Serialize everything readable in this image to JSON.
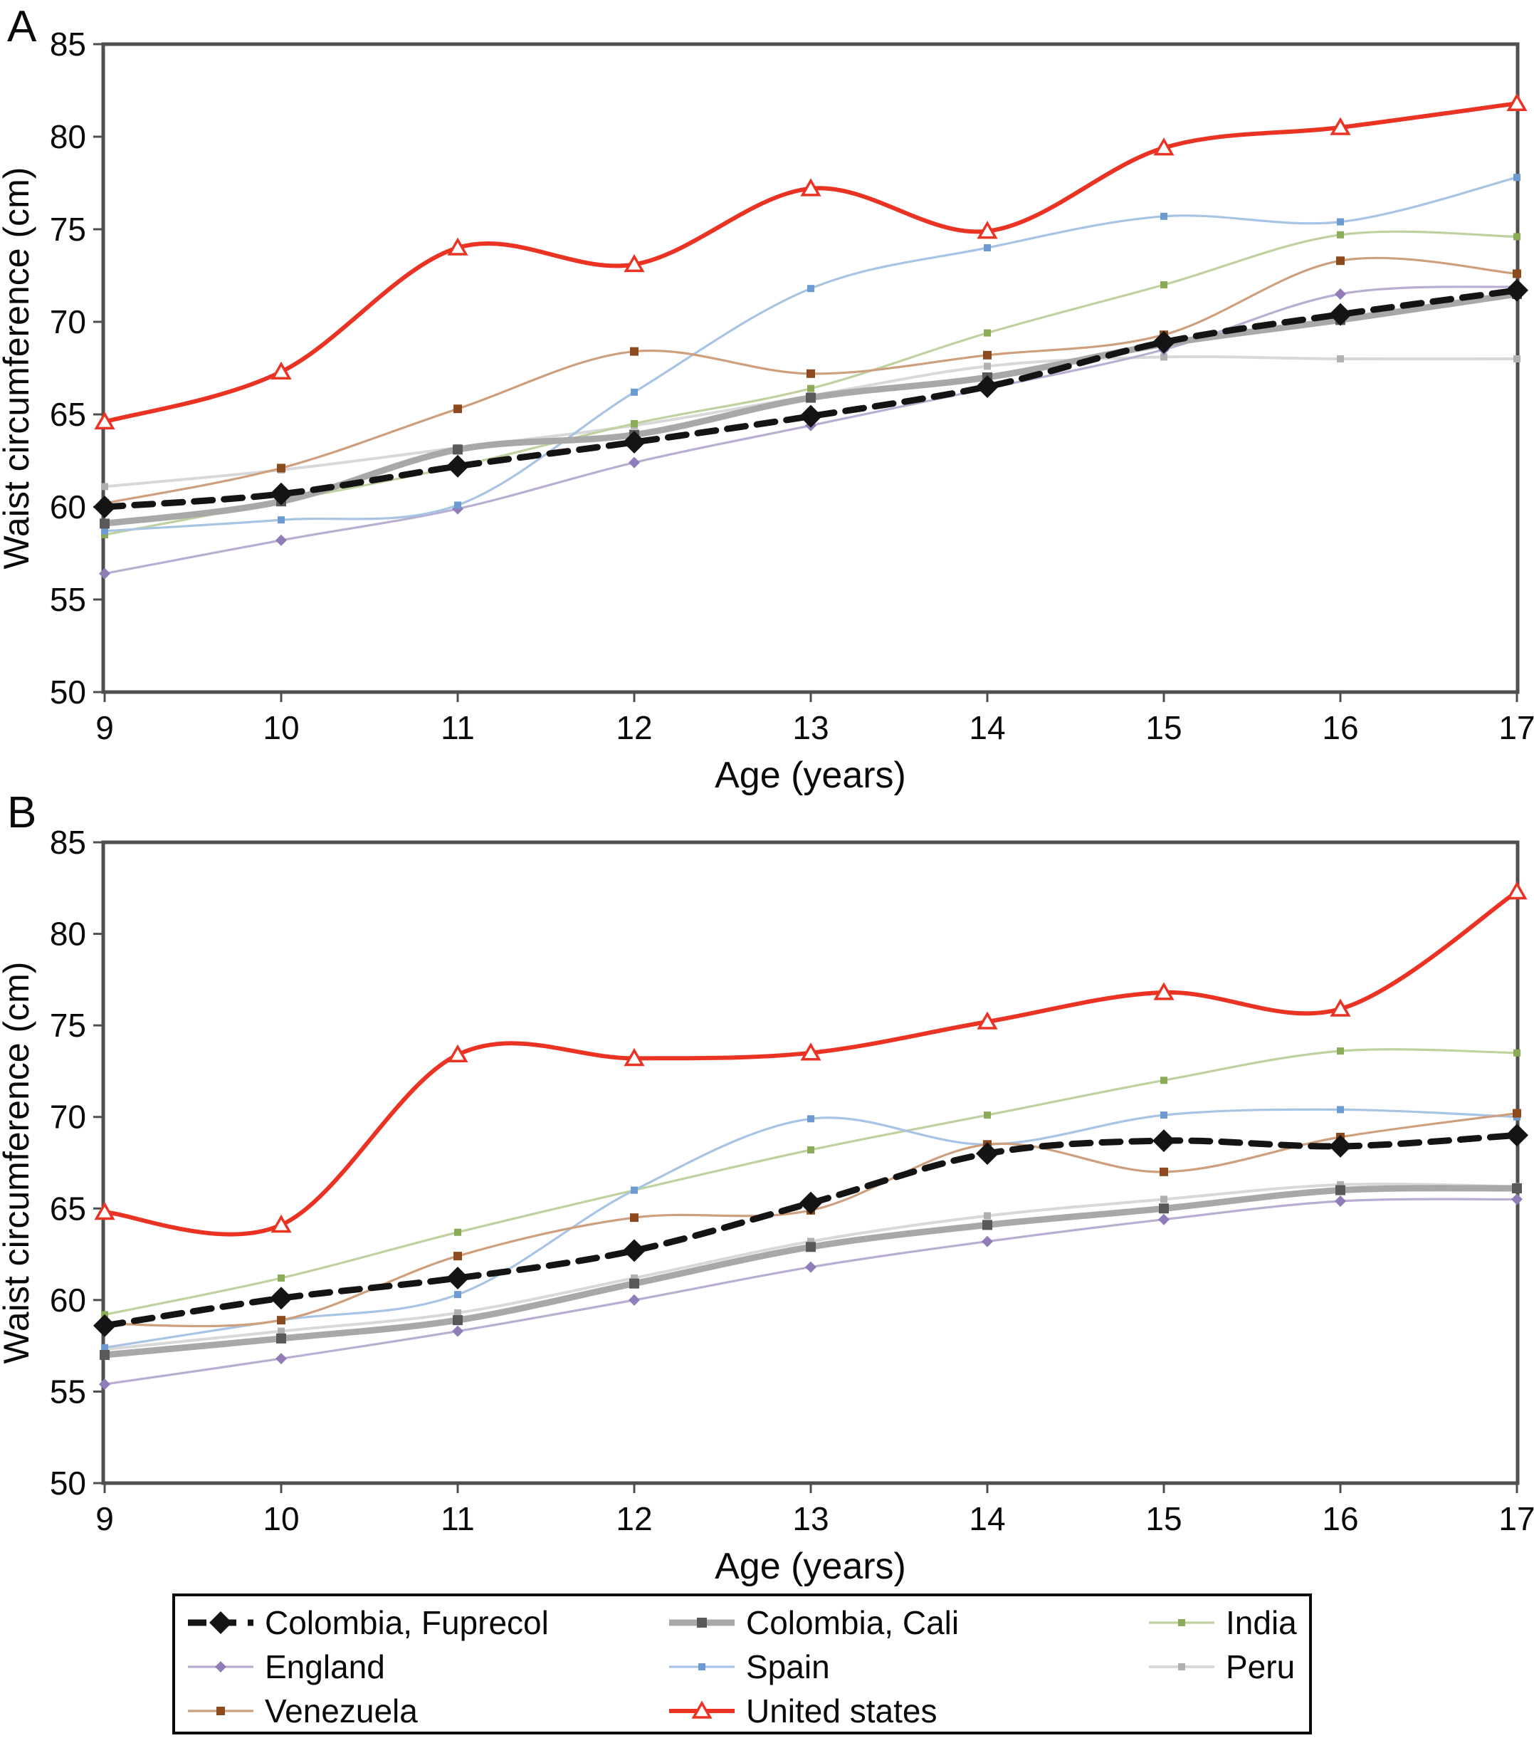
{
  "figure_title": "",
  "panel_labels": [
    "A",
    "B"
  ],
  "axis": {
    "x_label": "Age (years)",
    "y_label": "Waist circumference (cm)",
    "x_ticks": [
      9,
      10,
      11,
      12,
      13,
      14,
      15,
      16,
      17
    ],
    "y_ticks": [
      50,
      55,
      60,
      65,
      70,
      75,
      80,
      85
    ]
  },
  "chart_data": [
    {
      "type": "line",
      "panel": "A",
      "title": "",
      "xlabel": "Age (years)",
      "ylabel": "Waist circumference (cm)",
      "x": [
        9,
        10,
        11,
        12,
        13,
        14,
        15,
        16,
        17
      ],
      "ylim": [
        50,
        85
      ],
      "y_ticks": [
        50,
        55,
        60,
        65,
        70,
        75,
        80,
        85
      ],
      "grid": false,
      "series": [
        {
          "id": "fuprecol",
          "name": "Colombia, Fuprecol",
          "values": [
            60.0,
            60.7,
            62.2,
            63.5,
            64.9,
            66.5,
            68.9,
            70.4,
            71.7
          ]
        },
        {
          "id": "cali",
          "name": "Colombia, Cali",
          "values": [
            59.1,
            60.3,
            63.1,
            63.9,
            65.9,
            67.0,
            68.8,
            70.1,
            71.5
          ]
        },
        {
          "id": "india",
          "name": "India",
          "values": [
            58.5,
            60.3,
            62.2,
            64.5,
            66.4,
            69.4,
            72.0,
            74.7,
            74.6
          ]
        },
        {
          "id": "england",
          "name": "England",
          "values": [
            56.4,
            58.2,
            59.9,
            62.4,
            64.4,
            66.4,
            68.5,
            71.5,
            71.9
          ]
        },
        {
          "id": "spain",
          "name": "Spain",
          "values": [
            58.7,
            59.3,
            60.1,
            66.2,
            71.8,
            74.0,
            75.7,
            75.4,
            77.8
          ]
        },
        {
          "id": "peru",
          "name": "Peru",
          "values": [
            61.1,
            62.0,
            63.2,
            64.4,
            66.0,
            67.6,
            68.1,
            68.0,
            68.0
          ]
        },
        {
          "id": "venezuela",
          "name": "Venezuela",
          "values": [
            60.2,
            62.1,
            65.3,
            68.4,
            67.2,
            68.2,
            69.3,
            73.3,
            72.6
          ]
        },
        {
          "id": "us",
          "name": "United states",
          "values": [
            64.6,
            67.3,
            74.0,
            73.1,
            77.2,
            74.9,
            79.4,
            80.5,
            81.8
          ]
        }
      ]
    },
    {
      "type": "line",
      "panel": "B",
      "title": "",
      "xlabel": "Age (years)",
      "ylabel": "Waist circumference (cm)",
      "x": [
        9,
        10,
        11,
        12,
        13,
        14,
        15,
        16,
        17
      ],
      "ylim": [
        50,
        85
      ],
      "y_ticks": [
        50,
        55,
        60,
        65,
        70,
        75,
        80,
        85
      ],
      "grid": false,
      "series": [
        {
          "id": "fuprecol",
          "name": "Colombia, Fuprecol",
          "values": [
            58.6,
            60.1,
            61.2,
            62.7,
            65.3,
            68.0,
            68.7,
            68.4,
            69.0
          ]
        },
        {
          "id": "cali",
          "name": "Colombia, Cali",
          "values": [
            57.0,
            57.9,
            58.9,
            60.9,
            62.9,
            64.1,
            65.0,
            66.0,
            66.1
          ]
        },
        {
          "id": "india",
          "name": "India",
          "values": [
            59.2,
            61.2,
            63.7,
            66.0,
            68.2,
            70.1,
            72.0,
            73.6,
            73.5
          ]
        },
        {
          "id": "england",
          "name": "England",
          "values": [
            55.4,
            56.8,
            58.3,
            60.0,
            61.8,
            63.2,
            64.4,
            65.4,
            65.5
          ]
        },
        {
          "id": "spain",
          "name": "Spain",
          "values": [
            57.4,
            58.9,
            60.3,
            66.0,
            69.9,
            68.5,
            70.1,
            70.4,
            70.0
          ]
        },
        {
          "id": "peru",
          "name": "Peru",
          "values": [
            57.3,
            58.3,
            59.3,
            61.2,
            63.2,
            64.6,
            65.5,
            66.3,
            66.2
          ]
        },
        {
          "id": "venezuela",
          "name": "Venezuela",
          "values": [
            58.7,
            58.9,
            62.4,
            64.5,
            64.9,
            68.5,
            67.0,
            68.9,
            70.2
          ]
        },
        {
          "id": "us",
          "name": "United states",
          "values": [
            64.8,
            64.1,
            73.4,
            73.2,
            73.5,
            75.2,
            76.8,
            75.9,
            82.3
          ]
        }
      ]
    }
  ],
  "series_styles": {
    "fuprecol": {
      "line_color": "#141414",
      "line_width": 9,
      "dash": "26 16",
      "marker": "diamond",
      "marker_color": "#141414",
      "marker_size": 16
    },
    "cali": {
      "line_color": "#a8a8a8",
      "line_width": 9,
      "dash": "",
      "marker": "square",
      "marker_color": "#595959",
      "marker_size": 7
    },
    "india": {
      "line_color": "#c0d1a0",
      "line_width": 3.2,
      "dash": "",
      "marker": "square",
      "marker_color": "#8aab57",
      "marker_size": 5
    },
    "england": {
      "line_color": "#b9aed1",
      "line_width": 3.2,
      "dash": "",
      "marker": "diamond",
      "marker_color": "#8f7cb8",
      "marker_size": 8
    },
    "spain": {
      "line_color": "#a8c4e4",
      "line_width": 3.2,
      "dash": "",
      "marker": "square",
      "marker_color": "#6d9bd1",
      "marker_size": 5
    },
    "peru": {
      "line_color": "#d8d8d8",
      "line_width": 4,
      "dash": "",
      "marker": "square",
      "marker_color": "#b0b0b0",
      "marker_size": 5
    },
    "venezuela": {
      "line_color": "#ce9f7c",
      "line_width": 3.2,
      "dash": "",
      "marker": "square",
      "marker_color": "#8d4a1f",
      "marker_size": 6
    },
    "us": {
      "line_color": "#ea3323",
      "line_width": 6,
      "dash": "",
      "marker": "triangle-open",
      "marker_color": "#ea3323",
      "marker_size": 11
    }
  },
  "legend": {
    "position": "bottom",
    "entries": [
      {
        "series": "fuprecol",
        "label": "Colombia, Fuprecol"
      },
      {
        "series": "cali",
        "label": "Colombia, Cali"
      },
      {
        "series": "india",
        "label": "India"
      },
      {
        "series": "england",
        "label": "England"
      },
      {
        "series": "spain",
        "label": "Spain"
      },
      {
        "series": "peru",
        "label": "Peru"
      },
      {
        "series": "venezuela",
        "label": "Venezuela"
      },
      {
        "series": "us",
        "label": "United states"
      }
    ]
  }
}
